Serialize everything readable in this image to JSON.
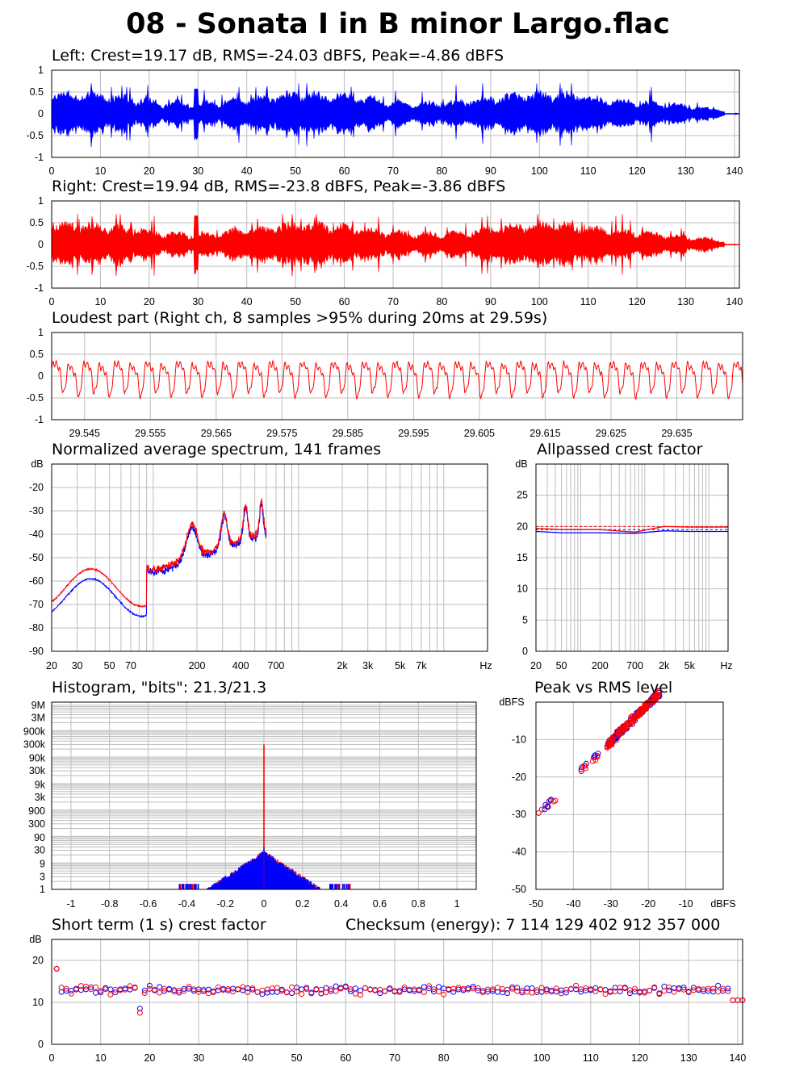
{
  "page": {
    "title": "08 - Sonata I in B minor Largo.flac"
  },
  "colors": {
    "left": "#0000ff",
    "right": "#ff0000",
    "grid": "#bdbdbd"
  },
  "chart_data": [
    {
      "id": "left",
      "type": "line",
      "title": "Left: Crest=19.17 dB, RMS=-24.03 dBFS, Peak=-4.86 dBFS",
      "xlim": [
        0,
        141
      ],
      "ylim": [
        -1,
        1
      ],
      "xticks": [
        0,
        10,
        20,
        30,
        40,
        50,
        60,
        70,
        80,
        90,
        100,
        110,
        120,
        130,
        140
      ],
      "yticks": [
        "1",
        "0.5",
        "0",
        "-0.5",
        "-1"
      ],
      "series": [
        {
          "color": "#0000ff",
          "peak": -4.86,
          "rms": -24.03
        }
      ]
    },
    {
      "id": "right",
      "type": "line",
      "title": "Right: Crest=19.94 dB, RMS=-23.8 dBFS, Peak=-3.86 dBFS",
      "xlim": [
        0,
        141
      ],
      "ylim": [
        -1,
        1
      ],
      "xticks": [
        0,
        10,
        20,
        30,
        40,
        50,
        60,
        70,
        80,
        90,
        100,
        110,
        120,
        130,
        140
      ],
      "yticks": [
        "1",
        "0.5",
        "0",
        "-0.5",
        "-1"
      ],
      "series": [
        {
          "color": "#ff0000",
          "peak": -3.86,
          "rms": -23.8
        }
      ]
    },
    {
      "id": "loudest",
      "type": "line",
      "title": "Loudest part (Right ch, 8 samples >95% during 20ms at 29.59s)",
      "xlim": [
        29.54,
        29.645
      ],
      "ylim": [
        -1,
        1
      ],
      "xticks": [
        "29.545",
        "29.555",
        "29.565",
        "29.575",
        "29.585",
        "29.595",
        "29.605",
        "29.615",
        "29.625",
        "29.635"
      ],
      "yticks": [
        "1",
        "0.5",
        "0",
        "-0.5",
        "-1"
      ],
      "series": [
        {
          "color": "#ff0000"
        }
      ]
    },
    {
      "id": "spectrum",
      "type": "line",
      "title": "Normalized average spectrum, 141 frames",
      "ylabel": "dB",
      "xlabel": "Hz",
      "xlim": [
        20,
        20000
      ],
      "xscale": "log",
      "ylim": [
        -90,
        -10
      ],
      "xticks": [
        [
          "20",
          20
        ],
        [
          "30",
          30
        ],
        [
          "50",
          50
        ],
        [
          "70",
          70
        ],
        [
          "200",
          200
        ],
        [
          "400",
          400
        ],
        [
          "700",
          700
        ],
        [
          "2k",
          2000
        ],
        [
          "3k",
          3000
        ],
        [
          "5k",
          5000
        ],
        [
          "7k",
          7000
        ]
      ],
      "yticks": [
        "-20",
        "-30",
        "-40",
        "-50",
        "-60",
        "-70",
        "-80",
        "-90"
      ],
      "series": [
        {
          "color": "#0000ff"
        },
        {
          "color": "#ff0000"
        }
      ]
    },
    {
      "id": "allpassed",
      "type": "line",
      "title": "Allpassed crest factor",
      "ylabel": "dB",
      "xlabel": "Hz",
      "xlim": [
        20,
        20000
      ],
      "xscale": "log",
      "ylim": [
        0,
        30
      ],
      "xticks": [
        [
          "20",
          20
        ],
        [
          "50",
          50
        ],
        [
          "200",
          200
        ],
        [
          "700",
          700
        ],
        [
          "2k",
          2000
        ],
        [
          "5k",
          5000
        ]
      ],
      "yticks": [
        "25",
        "20",
        "15",
        "10",
        "5",
        "0"
      ],
      "series": [
        {
          "color": "#0000ff",
          "points": [
            [
              20,
              19.2
            ],
            [
              50,
              19.0
            ],
            [
              200,
              19.0
            ],
            [
              700,
              18.9
            ],
            [
              2000,
              19.3
            ],
            [
              5000,
              19.2
            ],
            [
              20000,
              19.2
            ]
          ]
        },
        {
          "color": "#ff0000",
          "points": [
            [
              20,
              19.7
            ],
            [
              50,
              19.5
            ],
            [
              200,
              19.5
            ],
            [
              700,
              19.1
            ],
            [
              2000,
              20.0
            ],
            [
              5000,
              19.9
            ],
            [
              20000,
              19.9
            ]
          ]
        }
      ]
    },
    {
      "id": "histogram",
      "type": "bar",
      "title": "Histogram, \"bits\": 21.3/21.3",
      "xlim": [
        -1.1,
        1.1
      ],
      "xticks": [
        "-1",
        "-0.8",
        "-0.6",
        "-0.4",
        "-0.2",
        "0",
        "0.2",
        "0.4",
        "0.6",
        "0.8",
        "1"
      ],
      "yticks": [
        "9M",
        "3M",
        "900k",
        "300k",
        "90k",
        "30k",
        "9k",
        "3k",
        "900",
        "300",
        "90",
        "30",
        "9",
        "3",
        "1"
      ],
      "series": [
        {
          "color": "#0000ff"
        },
        {
          "color": "#ff0000"
        }
      ]
    },
    {
      "id": "peakrms",
      "type": "scatter",
      "title": "Peak vs RMS level",
      "ylabel": "dBFS",
      "xlabel": "dBFS",
      "xlim": [
        -50,
        0
      ],
      "ylim": [
        -50,
        0
      ],
      "xticks": [
        "-50",
        "-40",
        "-30",
        "-20",
        "-10"
      ],
      "yticks": [
        "-10",
        "-20",
        "-30",
        "-40",
        "-50"
      ],
      "series": [
        {
          "color": "#0000ff"
        },
        {
          "color": "#ff0000"
        }
      ]
    },
    {
      "id": "shortcrest",
      "type": "scatter",
      "title": "Short term (1 s) crest factor",
      "ylabel": "dB",
      "xlim": [
        0,
        141
      ],
      "ylim": [
        0,
        25
      ],
      "xticks": [
        0,
        10,
        20,
        30,
        40,
        50,
        60,
        70,
        80,
        90,
        100,
        110,
        120,
        130,
        140
      ],
      "yticks": [
        "20",
        "10",
        "0"
      ],
      "series": [
        {
          "color": "#0000ff"
        },
        {
          "color": "#ff0000"
        }
      ]
    }
  ],
  "checksum": "Checksum (energy): 7 114 129 402 912 357 000"
}
